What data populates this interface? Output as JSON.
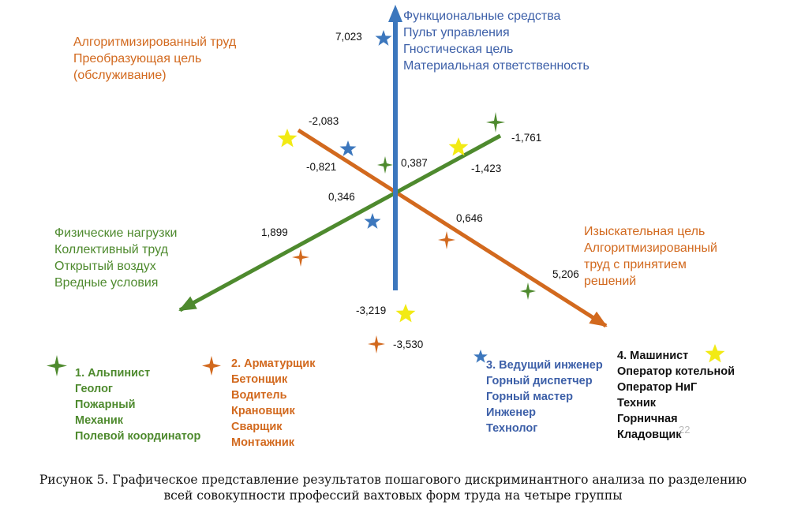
{
  "colors": {
    "green": "#4e8a2e",
    "orange": "#d2691e",
    "blue": "#3c77bd",
    "yellow": "#f2ea14",
    "group4_text": "#111111"
  },
  "axis_labels": {
    "top": [
      "Функциональные средства",
      "Пульт управления",
      "Гностическая цель",
      "Материальная ответственность"
    ],
    "upper_left": [
      "Алгоритмизированный труд",
      "Преобразующая цель",
      "(обслуживание)"
    ],
    "lower_left": [
      "Физические нагрузки",
      "Коллективный труд",
      "Открытый воздух",
      "Вредные условия"
    ],
    "lower_right": [
      "Изыскательная цель",
      "Алгоритмизированный",
      "труд с принятием",
      "решений"
    ]
  },
  "values": {
    "v7023": "7,023",
    "v2083": "-2,083",
    "v1761": "-1,761",
    "v0821": "-0,821",
    "v0387": "0,387",
    "v1423": "-1,423",
    "v0346": "0,346",
    "v1899": "1,899",
    "v0646": "0,646",
    "v5206": "5,206",
    "v3219": "-3,219",
    "v3530": "-3,530"
  },
  "legend": {
    "group1": [
      "1. Альпинист",
      "Геолог",
      "Пожарный",
      "Механик",
      "Полевой координатор"
    ],
    "group2": [
      "2. Арматурщик",
      "Бетонщик",
      "Водитель",
      "Крановщик",
      "Сварщик",
      "Монтажник"
    ],
    "group3": [
      "3. Ведущий инженер",
      "Горный диспетчер",
      "Горный мастер",
      "Инженер",
      "Технолог"
    ],
    "group4": [
      "4. Машинист",
      "Оператор котельной",
      "Оператор НиГ",
      "Техник",
      "Горничная",
      "Кладовщик"
    ]
  },
  "page_number": "22",
  "caption": {
    "line1": "Рисунок 5. Графическое представление результатов пошагового дискриминантного анализа по разделению",
    "line2": "всей совокупности профессий вахтовых форм труда на четыре группы"
  }
}
